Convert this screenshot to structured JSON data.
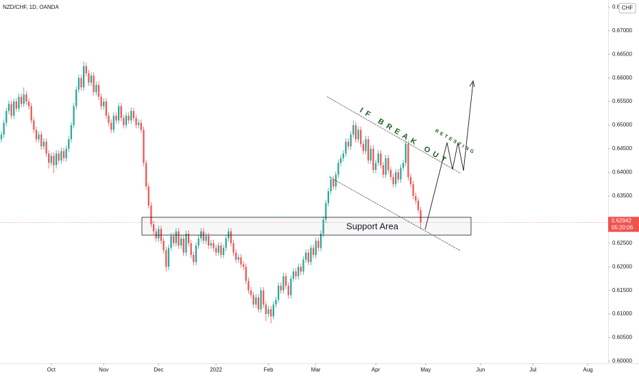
{
  "chart_data": {
    "type": "candlestick",
    "title": "NZD/CHF, 1D, OANDA",
    "currency": "CHF",
    "up_color": "#26a69a",
    "down_color": "#ef5350",
    "xlim": [
      -0.55,
      243.1
    ],
    "ylim": [
      0.59956,
      0.6765
    ],
    "xticks": [
      {
        "value": 20,
        "label": "Oct"
      },
      {
        "value": 41,
        "label": "Nov"
      },
      {
        "value": 63,
        "label": "Dec"
      },
      {
        "value": 86,
        "label": "2022"
      },
      {
        "value": 107,
        "label": "Feb"
      },
      {
        "value": 126,
        "label": "Mar"
      },
      {
        "value": 150,
        "label": "Apr"
      },
      {
        "value": 170,
        "label": "May"
      },
      {
        "value": 192,
        "label": "Jun"
      },
      {
        "value": 213,
        "label": "Jul"
      },
      {
        "value": 235,
        "label": "Aug"
      }
    ],
    "yticks": [
      {
        "value": 0.6,
        "label": "0.60000"
      },
      {
        "value": 0.605,
        "label": "0.60500"
      },
      {
        "value": 0.61,
        "label": "0.61000"
      },
      {
        "value": 0.615,
        "label": "0.61500"
      },
      {
        "value": 0.62,
        "label": "0.62000"
      },
      {
        "value": 0.625,
        "label": "0.62500"
      },
      {
        "value": 0.63,
        "label": "0.63000"
      },
      {
        "value": 0.635,
        "label": "0.63500"
      },
      {
        "value": 0.64,
        "label": "0.64000"
      },
      {
        "value": 0.645,
        "label": "0.64500"
      },
      {
        "value": 0.65,
        "label": "0.65000"
      },
      {
        "value": 0.655,
        "label": "0.65500"
      },
      {
        "value": 0.66,
        "label": "0.66000"
      },
      {
        "value": 0.665,
        "label": "0.66500"
      },
      {
        "value": 0.67,
        "label": "0.67000"
      },
      {
        "value": 0.675,
        "label": "0.67500"
      }
    ],
    "last_price": 0.62942,
    "last_price_label": "0.62942",
    "countdown": "05:20:06",
    "annotations": {
      "support": "Support Area",
      "breakout": "IF BREAK OUT",
      "retest": "RETESTING"
    },
    "candles": [
      [
        0.647,
        0.6487,
        0.6463,
        0.648
      ],
      [
        0.648,
        0.6512,
        0.6473,
        0.6505
      ],
      [
        0.6505,
        0.6537,
        0.6498,
        0.653
      ],
      [
        0.653,
        0.6552,
        0.6523,
        0.6545
      ],
      [
        0.6545,
        0.6552,
        0.6513,
        0.652
      ],
      [
        0.652,
        0.6557,
        0.6513,
        0.655
      ],
      [
        0.655,
        0.6557,
        0.6528,
        0.6535
      ],
      [
        0.6535,
        0.6567,
        0.6528,
        0.656
      ],
      [
        0.656,
        0.6567,
        0.6538,
        0.6545
      ],
      [
        0.6545,
        0.658,
        0.6538,
        0.6565
      ],
      [
        0.6565,
        0.6572,
        0.6543,
        0.655
      ],
      [
        0.655,
        0.6557,
        0.6533,
        0.654
      ],
      [
        0.654,
        0.6547,
        0.6503,
        0.651
      ],
      [
        0.651,
        0.6517,
        0.6483,
        0.649
      ],
      [
        0.649,
        0.6497,
        0.6463,
        0.647
      ],
      [
        0.647,
        0.6487,
        0.6463,
        0.648
      ],
      [
        0.648,
        0.6487,
        0.6448,
        0.6455
      ],
      [
        0.6455,
        0.6472,
        0.6448,
        0.6465
      ],
      [
        0.6465,
        0.6472,
        0.6433,
        0.644
      ],
      [
        0.644,
        0.6447,
        0.6408,
        0.642
      ],
      [
        0.642,
        0.6442,
        0.6413,
        0.6435
      ],
      [
        0.6435,
        0.6442,
        0.6398,
        0.6415
      ],
      [
        0.6415,
        0.6447,
        0.6408,
        0.644
      ],
      [
        0.644,
        0.6447,
        0.6418,
        0.6425
      ],
      [
        0.6425,
        0.6452,
        0.6418,
        0.6445
      ],
      [
        0.6445,
        0.6452,
        0.6423,
        0.643
      ],
      [
        0.643,
        0.6457,
        0.6423,
        0.645
      ],
      [
        0.645,
        0.6477,
        0.6443,
        0.647
      ],
      [
        0.647,
        0.6507,
        0.6463,
        0.65
      ],
      [
        0.65,
        0.6547,
        0.6493,
        0.654
      ],
      [
        0.654,
        0.6582,
        0.6533,
        0.6575
      ],
      [
        0.6575,
        0.6607,
        0.6568,
        0.66
      ],
      [
        0.66,
        0.6607,
        0.6573,
        0.658
      ],
      [
        0.658,
        0.6635,
        0.6573,
        0.6625
      ],
      [
        0.6625,
        0.6632,
        0.6603,
        0.661
      ],
      [
        0.661,
        0.6617,
        0.6583,
        0.659
      ],
      [
        0.659,
        0.6612,
        0.6583,
        0.6605
      ],
      [
        0.6605,
        0.6612,
        0.6563,
        0.657
      ],
      [
        0.657,
        0.6592,
        0.6563,
        0.6585
      ],
      [
        0.6585,
        0.6592,
        0.6553,
        0.656
      ],
      [
        0.656,
        0.6567,
        0.6533,
        0.654
      ],
      [
        0.654,
        0.6557,
        0.6533,
        0.655
      ],
      [
        0.655,
        0.6557,
        0.6513,
        0.652
      ],
      [
        0.652,
        0.6527,
        0.6498,
        0.6505
      ],
      [
        0.6505,
        0.6512,
        0.6483,
        0.649
      ],
      [
        0.649,
        0.6527,
        0.6483,
        0.652
      ],
      [
        0.652,
        0.6527,
        0.6503,
        0.651
      ],
      [
        0.651,
        0.6547,
        0.6503,
        0.654
      ],
      [
        0.654,
        0.6547,
        0.6508,
        0.6515
      ],
      [
        0.6515,
        0.6522,
        0.6493,
        0.65
      ],
      [
        0.65,
        0.6527,
        0.6493,
        0.652
      ],
      [
        0.652,
        0.6527,
        0.6503,
        0.651
      ],
      [
        0.651,
        0.6537,
        0.6503,
        0.653
      ],
      [
        0.653,
        0.6537,
        0.6508,
        0.6515
      ],
      [
        0.6515,
        0.6522,
        0.6493,
        0.65
      ],
      [
        0.65,
        0.6512,
        0.6493,
        0.6505
      ],
      [
        0.6505,
        0.6512,
        0.6483,
        0.649
      ],
      [
        0.649,
        0.6497,
        0.6413,
        0.642
      ],
      [
        0.642,
        0.6427,
        0.6363,
        0.637
      ],
      [
        0.637,
        0.6377,
        0.6323,
        0.633
      ],
      [
        0.633,
        0.6337,
        0.6283,
        0.629
      ],
      [
        0.629,
        0.6297,
        0.6268,
        0.6275
      ],
      [
        0.6275,
        0.6282,
        0.6253,
        0.626
      ],
      [
        0.626,
        0.6287,
        0.6253,
        0.628
      ],
      [
        0.628,
        0.6287,
        0.6248,
        0.6255
      ],
      [
        0.6255,
        0.6262,
        0.6228,
        0.6235
      ],
      [
        0.6235,
        0.6242,
        0.619,
        0.62
      ],
      [
        0.62,
        0.6247,
        0.6193,
        0.624
      ],
      [
        0.624,
        0.6272,
        0.6233,
        0.6265
      ],
      [
        0.6265,
        0.6272,
        0.6243,
        0.625
      ],
      [
        0.625,
        0.6282,
        0.6243,
        0.6275
      ],
      [
        0.6275,
        0.6282,
        0.6238,
        0.6245
      ],
      [
        0.6245,
        0.6267,
        0.6238,
        0.626
      ],
      [
        0.626,
        0.6267,
        0.6223,
        0.623
      ],
      [
        0.623,
        0.6277,
        0.6223,
        0.627
      ],
      [
        0.627,
        0.6277,
        0.6243,
        0.625
      ],
      [
        0.625,
        0.6257,
        0.6218,
        0.6225
      ],
      [
        0.6225,
        0.6232,
        0.6203,
        0.621
      ],
      [
        0.621,
        0.6252,
        0.6203,
        0.6245
      ],
      [
        0.6245,
        0.6267,
        0.6238,
        0.626
      ],
      [
        0.626,
        0.6282,
        0.6253,
        0.6275
      ],
      [
        0.6275,
        0.6282,
        0.6248,
        0.6255
      ],
      [
        0.6255,
        0.6272,
        0.6248,
        0.6265
      ],
      [
        0.6265,
        0.6272,
        0.6238,
        0.6245
      ],
      [
        0.6245,
        0.6257,
        0.6238,
        0.625
      ],
      [
        0.625,
        0.6257,
        0.6233,
        0.624
      ],
      [
        0.624,
        0.6247,
        0.6223,
        0.623
      ],
      [
        0.623,
        0.6252,
        0.6223,
        0.6245
      ],
      [
        0.6245,
        0.6252,
        0.6218,
        0.6225
      ],
      [
        0.6225,
        0.6247,
        0.6218,
        0.624
      ],
      [
        0.624,
        0.6267,
        0.6233,
        0.626
      ],
      [
        0.626,
        0.6282,
        0.6253,
        0.6275
      ],
      [
        0.6275,
        0.6282,
        0.6243,
        0.625
      ],
      [
        0.625,
        0.6257,
        0.6223,
        0.623
      ],
      [
        0.623,
        0.6237,
        0.6208,
        0.6215
      ],
      [
        0.6215,
        0.6227,
        0.6208,
        0.622
      ],
      [
        0.622,
        0.6227,
        0.6198,
        0.6205
      ],
      [
        0.6205,
        0.6212,
        0.6193,
        0.62
      ],
      [
        0.62,
        0.6207,
        0.6163,
        0.617
      ],
      [
        0.617,
        0.6177,
        0.6143,
        0.615
      ],
      [
        0.615,
        0.6157,
        0.6133,
        0.614
      ],
      [
        0.614,
        0.6147,
        0.6113,
        0.612
      ],
      [
        0.612,
        0.6142,
        0.6113,
        0.6135
      ],
      [
        0.6135,
        0.6142,
        0.6103,
        0.611
      ],
      [
        0.611,
        0.6157,
        0.6103,
        0.615
      ],
      [
        0.615,
        0.6157,
        0.6113,
        0.612
      ],
      [
        0.612,
        0.6127,
        0.6085,
        0.61
      ],
      [
        0.61,
        0.6117,
        0.6093,
        0.611
      ],
      [
        0.611,
        0.6117,
        0.608,
        0.6095
      ],
      [
        0.6095,
        0.6127,
        0.6088,
        0.612
      ],
      [
        0.612,
        0.6137,
        0.6113,
        0.613
      ],
      [
        0.613,
        0.6167,
        0.6123,
        0.616
      ],
      [
        0.616,
        0.6167,
        0.6143,
        0.615
      ],
      [
        0.615,
        0.6187,
        0.6143,
        0.618
      ],
      [
        0.618,
        0.6187,
        0.6153,
        0.616
      ],
      [
        0.616,
        0.6167,
        0.6133,
        0.614
      ],
      [
        0.614,
        0.6182,
        0.6133,
        0.6175
      ],
      [
        0.6175,
        0.6197,
        0.6168,
        0.619
      ],
      [
        0.619,
        0.6197,
        0.6173,
        0.618
      ],
      [
        0.618,
        0.6207,
        0.6173,
        0.62
      ],
      [
        0.62,
        0.6207,
        0.6183,
        0.619
      ],
      [
        0.619,
        0.6222,
        0.6183,
        0.6215
      ],
      [
        0.6215,
        0.6237,
        0.6208,
        0.623
      ],
      [
        0.623,
        0.6237,
        0.6203,
        0.621
      ],
      [
        0.621,
        0.6247,
        0.6203,
        0.624
      ],
      [
        0.624,
        0.6247,
        0.6218,
        0.6225
      ],
      [
        0.6225,
        0.6262,
        0.6218,
        0.6255
      ],
      [
        0.6255,
        0.6262,
        0.6233,
        0.624
      ],
      [
        0.624,
        0.6277,
        0.6233,
        0.627
      ],
      [
        0.627,
        0.6307,
        0.6263,
        0.63
      ],
      [
        0.63,
        0.6342,
        0.6293,
        0.6335
      ],
      [
        0.6335,
        0.6367,
        0.6328,
        0.636
      ],
      [
        0.636,
        0.6392,
        0.6353,
        0.6385
      ],
      [
        0.6385,
        0.6392,
        0.6363,
        0.637
      ],
      [
        0.637,
        0.6402,
        0.6363,
        0.6395
      ],
      [
        0.6395,
        0.6427,
        0.6388,
        0.642
      ],
      [
        0.642,
        0.6437,
        0.6413,
        0.643
      ],
      [
        0.643,
        0.6447,
        0.6423,
        0.644
      ],
      [
        0.644,
        0.6472,
        0.6433,
        0.6465
      ],
      [
        0.6465,
        0.6472,
        0.6448,
        0.6455
      ],
      [
        0.6455,
        0.6487,
        0.6448,
        0.648
      ],
      [
        0.648,
        0.651,
        0.6473,
        0.65
      ],
      [
        0.65,
        0.6507,
        0.6463,
        0.647
      ],
      [
        0.647,
        0.6497,
        0.6463,
        0.649
      ],
      [
        0.649,
        0.6497,
        0.6453,
        0.646
      ],
      [
        0.646,
        0.6467,
        0.6438,
        0.6445
      ],
      [
        0.6445,
        0.6477,
        0.6438,
        0.647
      ],
      [
        0.647,
        0.6477,
        0.6418,
        0.6425
      ],
      [
        0.6425,
        0.6457,
        0.6418,
        0.645
      ],
      [
        0.645,
        0.6457,
        0.6398,
        0.6405
      ],
      [
        0.6405,
        0.6427,
        0.6398,
        0.642
      ],
      [
        0.642,
        0.6447,
        0.6413,
        0.644
      ],
      [
        0.644,
        0.6447,
        0.6408,
        0.6415
      ],
      [
        0.6415,
        0.6422,
        0.6388,
        0.6395
      ],
      [
        0.6395,
        0.6437,
        0.6388,
        0.643
      ],
      [
        0.643,
        0.6437,
        0.6398,
        0.6405
      ],
      [
        0.6405,
        0.6412,
        0.6383,
        0.639
      ],
      [
        0.639,
        0.6397,
        0.6368,
        0.6375
      ],
      [
        0.6375,
        0.6407,
        0.6368,
        0.64
      ],
      [
        0.64,
        0.6407,
        0.6378,
        0.6385
      ],
      [
        0.6385,
        0.6417,
        0.6378,
        0.641
      ],
      [
        0.641,
        0.6427,
        0.6403,
        0.642
      ],
      [
        0.642,
        0.6467,
        0.6413,
        0.646
      ],
      [
        0.646,
        0.6467,
        0.6383,
        0.639
      ],
      [
        0.639,
        0.6397,
        0.6368,
        0.6375
      ],
      [
        0.6375,
        0.6382,
        0.6343,
        0.635
      ],
      [
        0.635,
        0.6357,
        0.6333,
        0.634
      ],
      [
        0.634,
        0.6347,
        0.6313,
        0.632
      ],
      [
        0.632,
        0.6327,
        0.628,
        0.62942
      ]
    ]
  }
}
